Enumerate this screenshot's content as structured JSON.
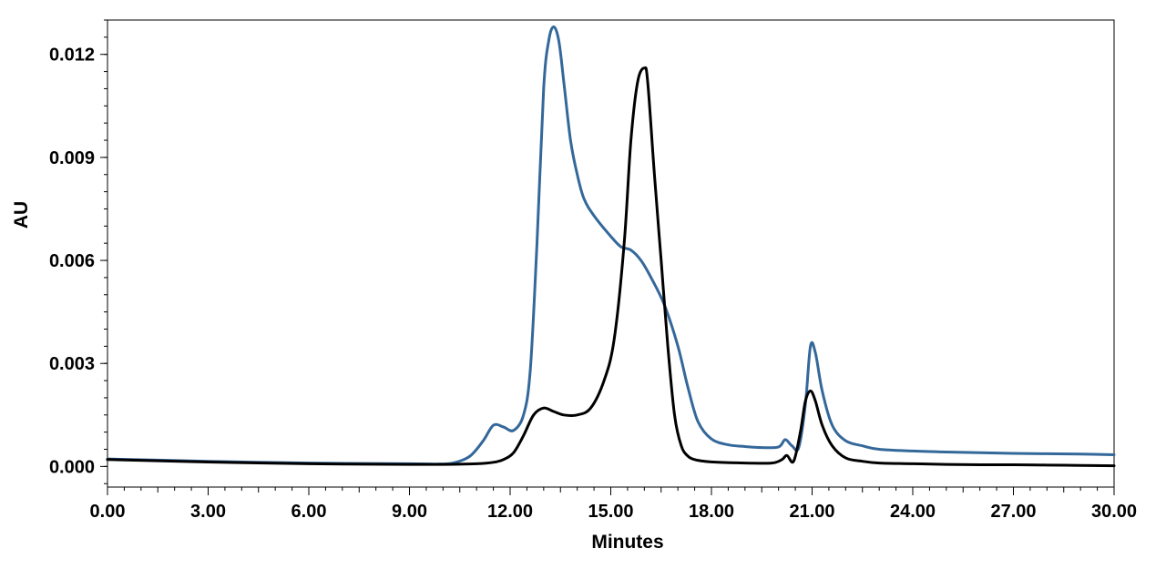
{
  "chart_data": {
    "type": "line",
    "title": "",
    "xlabel": "Minutes",
    "ylabel": "AU",
    "xlim": [
      0,
      30
    ],
    "ylim": [
      -0.0006,
      0.013
    ],
    "x_ticks": [
      0,
      3,
      6,
      9,
      12,
      15,
      18,
      21,
      24,
      27,
      30
    ],
    "x_tick_labels": [
      "0.00",
      "3.00",
      "6.00",
      "9.00",
      "12.00",
      "15.00",
      "18.00",
      "21.00",
      "24.00",
      "27.00",
      "30.00"
    ],
    "y_ticks": [
      0,
      0.003,
      0.006,
      0.009,
      0.012
    ],
    "y_tick_labels": [
      "0.000",
      "0.003",
      "0.006",
      "0.009",
      "0.012"
    ],
    "grid": false,
    "legend": "none",
    "series": [
      {
        "color": "#34689a",
        "x": [
          0,
          3,
          6,
          9,
          9.8,
          10.3,
          10.8,
          11.2,
          11.5,
          11.8,
          12.1,
          12.4,
          12.6,
          12.8,
          13.0,
          13.15,
          13.3,
          13.45,
          13.6,
          13.8,
          14.0,
          14.2,
          14.5,
          15.0,
          15.3,
          15.6,
          15.9,
          16.2,
          16.6,
          17.0,
          17.3,
          17.6,
          18.0,
          18.5,
          19.0,
          19.5,
          20.0,
          20.2,
          20.4,
          20.6,
          20.8,
          20.95,
          21.1,
          21.3,
          21.6,
          22.0,
          22.5,
          23.0,
          24.0,
          25.0,
          26.0,
          27.0,
          28.0,
          29.0,
          30.0
        ],
        "y": [
          0.00022,
          0.00015,
          0.0001,
          8e-05,
          7e-05,
          0.0001,
          0.0003,
          0.00075,
          0.0012,
          0.00115,
          0.00105,
          0.0015,
          0.0028,
          0.0065,
          0.011,
          0.0124,
          0.0128,
          0.0124,
          0.0112,
          0.0095,
          0.0085,
          0.0078,
          0.0073,
          0.0067,
          0.0064,
          0.0063,
          0.006,
          0.0055,
          0.0047,
          0.0035,
          0.0023,
          0.0013,
          0.0008,
          0.00063,
          0.00058,
          0.00055,
          0.00057,
          0.00078,
          0.0006,
          0.00055,
          0.0018,
          0.0035,
          0.0033,
          0.0022,
          0.0012,
          0.00075,
          0.0006,
          0.0005,
          0.00045,
          0.00042,
          0.0004,
          0.00038,
          0.00037,
          0.00036,
          0.00034
        ]
      },
      {
        "color": "#000000",
        "x": [
          0,
          3,
          6,
          9,
          10,
          11,
          11.5,
          11.8,
          12.1,
          12.4,
          12.7,
          13.0,
          13.3,
          13.6,
          14.0,
          14.4,
          14.8,
          15.1,
          15.4,
          15.6,
          15.8,
          16.0,
          16.1,
          16.3,
          16.5,
          16.7,
          16.9,
          17.1,
          17.3,
          17.5,
          17.8,
          18.2,
          19.0,
          19.8,
          20.1,
          20.25,
          20.45,
          20.65,
          20.8,
          20.95,
          21.1,
          21.3,
          21.6,
          22.0,
          22.5,
          23.0,
          24.0,
          25.0,
          26.0,
          27.0,
          28.0,
          29.0,
          30.0
        ],
        "y": [
          0.0002,
          0.00013,
          8e-05,
          6e-05,
          6e-05,
          8e-05,
          0.00012,
          0.0002,
          0.0004,
          0.0009,
          0.0015,
          0.0017,
          0.0016,
          0.0015,
          0.0015,
          0.0017,
          0.0025,
          0.0037,
          0.0065,
          0.0095,
          0.0112,
          0.0116,
          0.0112,
          0.0085,
          0.006,
          0.0035,
          0.0015,
          0.0006,
          0.0003,
          0.0002,
          0.00015,
          0.00012,
          0.0001,
          0.0001,
          0.0002,
          0.00032,
          0.00015,
          0.001,
          0.0019,
          0.0022,
          0.0019,
          0.0012,
          0.0006,
          0.00025,
          0.00015,
          0.0001,
          8e-05,
          6e-05,
          5e-05,
          5e-05,
          4e-05,
          3e-05,
          2e-05
        ]
      }
    ]
  }
}
